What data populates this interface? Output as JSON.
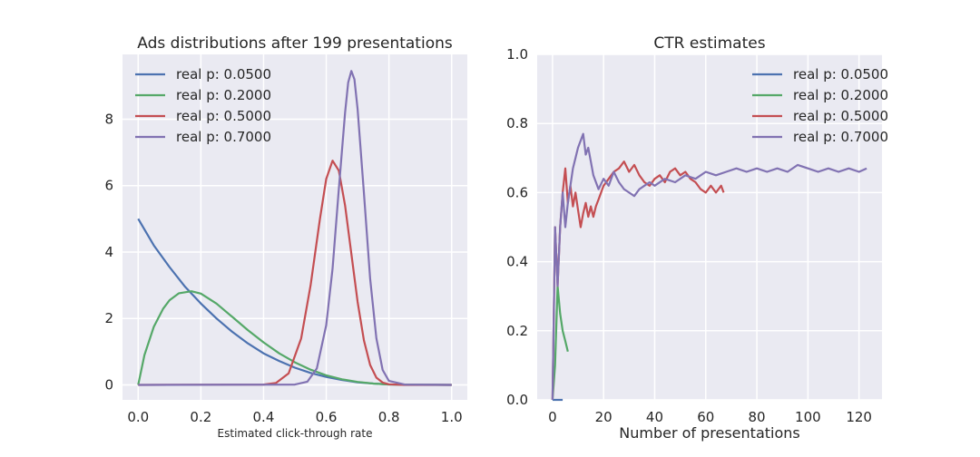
{
  "chart_data": [
    {
      "type": "line",
      "title": "Ads distributions after 199 presentations",
      "xlabel": "Estimated click-through rate",
      "ylabel": "",
      "xlim": [
        -0.05,
        1.05
      ],
      "ylim": [
        -0.45,
        9.95
      ],
      "xticks": [
        0.0,
        0.2,
        0.4,
        0.6,
        0.8,
        1.0
      ],
      "xtick_labels": [
        "0.0",
        "0.2",
        "0.4",
        "0.6",
        "0.8",
        "1.0"
      ],
      "yticks": [
        0,
        2,
        4,
        6,
        8
      ],
      "ytick_labels": [
        "0",
        "2",
        "4",
        "6",
        "8"
      ],
      "grid": true,
      "legend_position": "top-left",
      "series": [
        {
          "name": "real p: 0.0500",
          "color": "#4c72b0",
          "x": [
            0,
            0.05,
            0.1,
            0.15,
            0.2,
            0.25,
            0.3,
            0.35,
            0.4,
            0.45,
            0.5,
            0.55,
            0.6,
            0.65,
            0.7,
            0.75,
            0.8,
            1.0
          ],
          "y": [
            5.0,
            4.2,
            3.55,
            2.95,
            2.45,
            2.0,
            1.6,
            1.25,
            0.95,
            0.72,
            0.52,
            0.36,
            0.24,
            0.15,
            0.08,
            0.04,
            0.015,
            0
          ]
        },
        {
          "name": "real p: 0.2000",
          "color": "#55a868",
          "x": [
            0,
            0.02,
            0.05,
            0.08,
            0.1,
            0.13,
            0.17,
            0.2,
            0.25,
            0.3,
            0.35,
            0.4,
            0.45,
            0.5,
            0.55,
            0.6,
            0.65,
            0.7,
            0.75,
            0.8,
            0.9,
            1.0
          ],
          "y": [
            0,
            0.9,
            1.75,
            2.3,
            2.55,
            2.76,
            2.82,
            2.75,
            2.45,
            2.05,
            1.65,
            1.28,
            0.95,
            0.68,
            0.46,
            0.29,
            0.17,
            0.09,
            0.04,
            0.015,
            0.002,
            0
          ]
        },
        {
          "name": "real p: 0.5000",
          "color": "#c44e52",
          "x": [
            0,
            0.4,
            0.44,
            0.48,
            0.52,
            0.55,
            0.58,
            0.6,
            0.62,
            0.64,
            0.66,
            0.68,
            0.7,
            0.72,
            0.74,
            0.76,
            0.78,
            0.8,
            0.85,
            1.0
          ],
          "y": [
            0,
            0.01,
            0.06,
            0.35,
            1.4,
            3.0,
            5.0,
            6.2,
            6.75,
            6.45,
            5.4,
            3.95,
            2.5,
            1.35,
            0.6,
            0.22,
            0.07,
            0.02,
            0,
            0
          ]
        },
        {
          "name": "real p: 0.7000",
          "color": "#8172b2",
          "x": [
            0,
            0.5,
            0.54,
            0.57,
            0.6,
            0.62,
            0.64,
            0.66,
            0.67,
            0.68,
            0.69,
            0.7,
            0.72,
            0.74,
            0.76,
            0.78,
            0.8,
            0.85,
            1.0
          ],
          "y": [
            0,
            0.01,
            0.1,
            0.5,
            1.8,
            3.5,
            5.9,
            8.2,
            9.1,
            9.45,
            9.2,
            8.3,
            5.8,
            3.2,
            1.4,
            0.45,
            0.12,
            0.01,
            0
          ]
        }
      ]
    },
    {
      "type": "line",
      "title": "CTR estimates",
      "xlabel": "Number of presentations",
      "ylabel": "",
      "xlim": [
        -6,
        129
      ],
      "ylim": [
        0.0,
        1.0
      ],
      "xticks": [
        0,
        20,
        40,
        60,
        80,
        100,
        120
      ],
      "xtick_labels": [
        "0",
        "20",
        "40",
        "60",
        "80",
        "100",
        "120"
      ],
      "yticks": [
        0.0,
        0.2,
        0.4,
        0.6,
        0.8,
        1.0
      ],
      "ytick_labels": [
        "0.0",
        "0.2",
        "0.4",
        "0.6",
        "0.8",
        "1.0"
      ],
      "grid": true,
      "legend_position": "top-right",
      "series": [
        {
          "name": "real p: 0.0500",
          "color": "#4c72b0",
          "x": [
            0,
            1,
            2,
            3,
            4
          ],
          "y": [
            0,
            0,
            0,
            0,
            0
          ]
        },
        {
          "name": "real p: 0.2000",
          "color": "#55a868",
          "x": [
            0,
            1,
            2,
            3,
            4,
            5,
            6
          ],
          "y": [
            0,
            0.1,
            0.33,
            0.25,
            0.2,
            0.17,
            0.14
          ]
        },
        {
          "name": "real p: 0.5000",
          "color": "#c44e52",
          "x": [
            0,
            1,
            2,
            3,
            4,
            5,
            6,
            7,
            8,
            9,
            10,
            11,
            12,
            13,
            14,
            15,
            16,
            17,
            18,
            19,
            20,
            22,
            24,
            26,
            28,
            30,
            32,
            34,
            36,
            38,
            40,
            42,
            44,
            46,
            48,
            50,
            52,
            54,
            56,
            58,
            60,
            62,
            64,
            66,
            67
          ],
          "y": [
            0,
            0.5,
            0.33,
            0.5,
            0.6,
            0.67,
            0.57,
            0.62,
            0.56,
            0.6,
            0.55,
            0.5,
            0.54,
            0.57,
            0.53,
            0.56,
            0.53,
            0.56,
            0.58,
            0.6,
            0.62,
            0.64,
            0.66,
            0.67,
            0.69,
            0.66,
            0.68,
            0.65,
            0.63,
            0.62,
            0.64,
            0.65,
            0.63,
            0.66,
            0.67,
            0.65,
            0.66,
            0.64,
            0.63,
            0.61,
            0.6,
            0.62,
            0.6,
            0.62,
            0.6
          ]
        },
        {
          "name": "real p: 0.7000",
          "color": "#8172b2",
          "x": [
            0,
            1,
            2,
            3,
            4,
            5,
            6,
            7,
            8,
            10,
            12,
            13,
            14,
            15,
            16,
            18,
            20,
            22,
            24,
            26,
            28,
            30,
            32,
            34,
            36,
            38,
            40,
            44,
            48,
            52,
            56,
            60,
            64,
            68,
            72,
            76,
            80,
            84,
            88,
            92,
            96,
            100,
            104,
            108,
            112,
            116,
            120,
            123
          ],
          "y": [
            0,
            0.5,
            0.33,
            0.5,
            0.6,
            0.5,
            0.57,
            0.62,
            0.67,
            0.73,
            0.77,
            0.71,
            0.73,
            0.69,
            0.65,
            0.61,
            0.64,
            0.62,
            0.66,
            0.63,
            0.61,
            0.6,
            0.59,
            0.61,
            0.62,
            0.63,
            0.62,
            0.64,
            0.63,
            0.65,
            0.64,
            0.66,
            0.65,
            0.66,
            0.67,
            0.66,
            0.67,
            0.66,
            0.67,
            0.66,
            0.68,
            0.67,
            0.66,
            0.67,
            0.66,
            0.67,
            0.66,
            0.67
          ]
        }
      ]
    }
  ]
}
